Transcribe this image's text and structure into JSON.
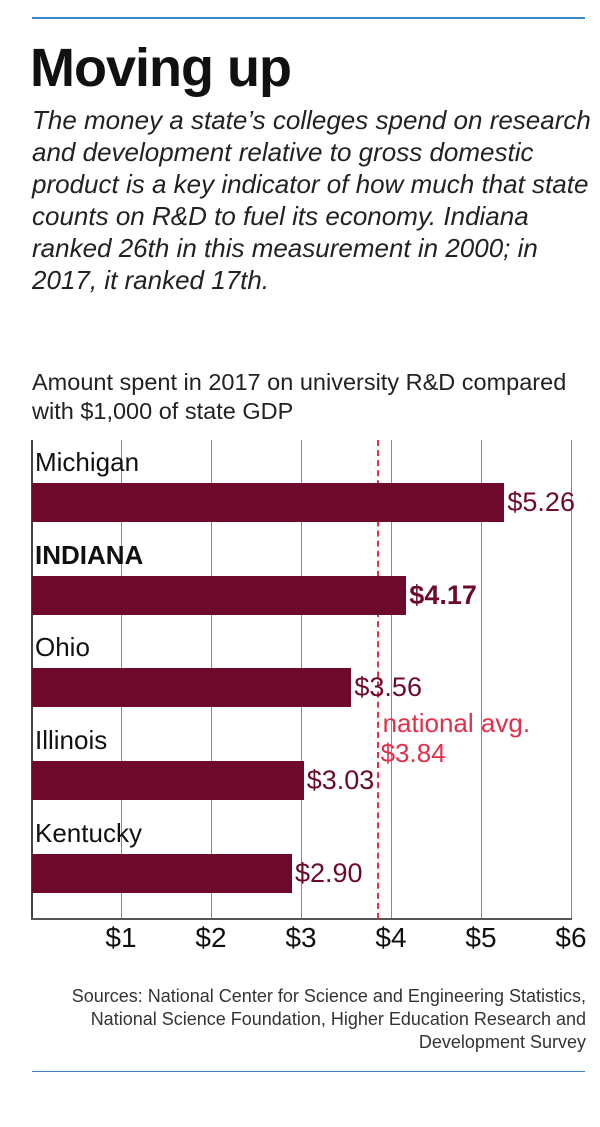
{
  "header": {
    "title": "Moving up",
    "subtitle": "The money a state’s colleges spend on research and development relative to gross domestic product is a key indicator of how much that state counts on R&D to fuel its economy. Indiana ranked 26th in this measurement in 2000; in 2017, it ranked 17th."
  },
  "chart_data": {
    "type": "bar",
    "orientation": "horizontal",
    "title": "Amount spent in 2017 on university R&D compared with $1,000 of state GDP",
    "categories": [
      "Michigan",
      "INDIANA",
      "Ohio",
      "Illinois",
      "Kentucky"
    ],
    "values": [
      5.26,
      4.17,
      3.56,
      3.03,
      2.9
    ],
    "value_labels": [
      "$5.26",
      "$4.17",
      "$3.56",
      "$3.03",
      "$2.90"
    ],
    "highlight": "INDIANA",
    "xlim": [
      0,
      6
    ],
    "xticks": [
      1,
      2,
      3,
      4,
      5,
      6
    ],
    "xtick_labels": [
      "$1",
      "$2",
      "$3",
      "$4",
      "$5",
      "$6"
    ],
    "grid": "vertical",
    "reference_line": {
      "value": 3.84,
      "label_line1": "national avg.",
      "label_line2": "$3.84"
    },
    "colors": {
      "bar": "#6d0a2c",
      "reference": "#e0304a",
      "rule": "#3d86c6"
    }
  },
  "footer": {
    "source": "Sources: National Center for Science and Engineering Statistics, National Science Foundation, Higher Education Research and Development Survey"
  }
}
